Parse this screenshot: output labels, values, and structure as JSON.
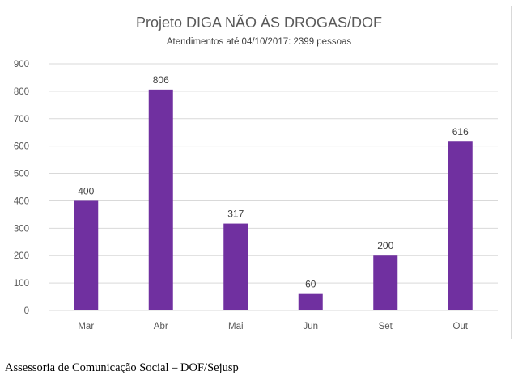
{
  "chart_data": {
    "type": "bar",
    "title": "Projeto DIGA NÃO ÀS DROGAS/DOF",
    "subtitle": "Atendimentos até 04/10/2017: 2399 pessoas",
    "categories": [
      "Mar",
      "Abr",
      "Mai",
      "Jun",
      "Set",
      "Out"
    ],
    "values": [
      400,
      806,
      317,
      60,
      200,
      616
    ],
    "ylim": [
      0,
      900
    ],
    "yticks": [
      0,
      100,
      200,
      300,
      400,
      500,
      600,
      700,
      800,
      900
    ],
    "xlabel": "",
    "ylabel": "",
    "grid": true,
    "legend": "none",
    "bar_color": "#7030a0",
    "grid_color": "#d9d9d9"
  },
  "footer": {
    "caption": "Assessoria de Comunicação Social – DOF/Sejusp"
  }
}
